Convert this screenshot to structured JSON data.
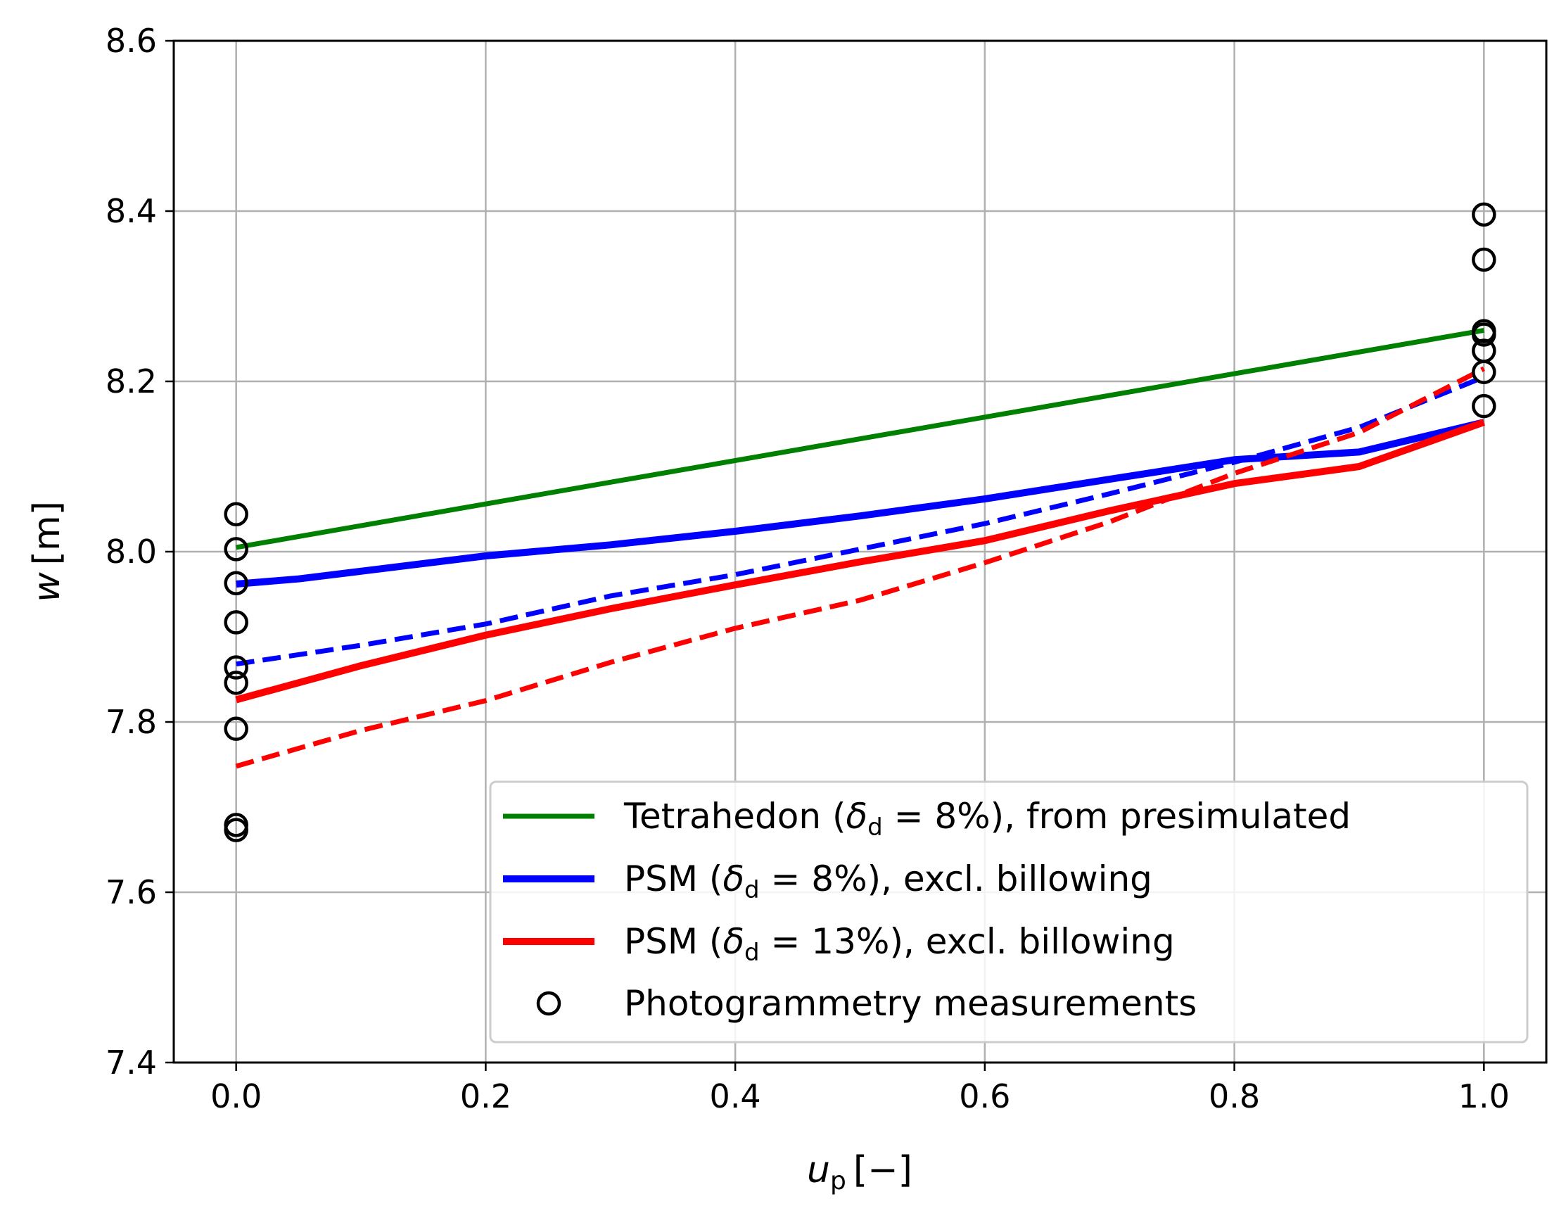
{
  "chart_data": {
    "type": "line",
    "title": "",
    "xlabel_var": "u",
    "xlabel_sub": "p",
    "xlabel_unit": "[−]",
    "ylabel_var": "w",
    "ylabel_unit": "[m]",
    "xlim": [
      -0.05,
      1.05
    ],
    "ylim": [
      7.4,
      8.6
    ],
    "xticks": [
      0.0,
      0.2,
      0.4,
      0.6,
      0.8,
      1.0
    ],
    "xtick_labels": [
      "0.0",
      "0.2",
      "0.4",
      "0.6",
      "0.8",
      "1.0"
    ],
    "yticks": [
      7.4,
      7.6,
      7.8,
      8.0,
      8.2,
      8.4,
      8.6
    ],
    "ytick_labels": [
      "7.4",
      "7.6",
      "7.8",
      "8.0",
      "8.2",
      "8.4",
      "8.6"
    ],
    "grid": true,
    "legend_position": "lower-right",
    "series": [
      {
        "name": "Tetrahedon",
        "legend_pre": "Tetrahedon (",
        "legend_delta": "δ",
        "legend_sub": "d",
        "legend_post": " = 8%), from presimulated",
        "color": "#008000",
        "style": "solid",
        "x": [
          0.0,
          1.0
        ],
        "y": [
          8.005,
          8.26
        ]
      },
      {
        "name": "PSM 8% solid",
        "legend_pre": "PSM (",
        "legend_delta": "δ",
        "legend_sub": "d",
        "legend_post": " = 8%), excl. billowing",
        "color": "#0000ff",
        "style": "solid",
        "x": [
          0.0,
          0.05,
          0.1,
          0.2,
          0.3,
          0.4,
          0.5,
          0.6,
          0.7,
          0.8,
          0.9,
          1.0
        ],
        "y": [
          7.962,
          7.968,
          7.977,
          7.995,
          8.008,
          8.024,
          8.042,
          8.062,
          8.085,
          8.108,
          8.117,
          8.152
        ]
      },
      {
        "name": "PSM 8% dashed",
        "color": "#0000ff",
        "style": "dashed",
        "x": [
          0.0,
          0.1,
          0.2,
          0.3,
          0.4,
          0.5,
          0.6,
          0.7,
          0.8,
          0.9,
          1.0
        ],
        "y": [
          7.868,
          7.89,
          7.915,
          7.948,
          7.973,
          8.003,
          8.033,
          8.068,
          8.105,
          8.146,
          8.205
        ]
      },
      {
        "name": "PSM 13% solid",
        "legend_pre": "PSM (",
        "legend_delta": "δ",
        "legend_sub": "d",
        "legend_post": " = 13%), excl. billowing",
        "color": "#ff0000",
        "style": "solid",
        "x": [
          0.0,
          0.1,
          0.2,
          0.3,
          0.4,
          0.5,
          0.6,
          0.7,
          0.8,
          0.9,
          1.0
        ],
        "y": [
          7.826,
          7.866,
          7.902,
          7.933,
          7.961,
          7.988,
          8.013,
          8.048,
          8.08,
          8.1,
          8.152
        ]
      },
      {
        "name": "PSM 13% dashed",
        "color": "#ff0000",
        "style": "dashed",
        "x": [
          0.0,
          0.1,
          0.2,
          0.3,
          0.4,
          0.5,
          0.6,
          0.7,
          0.8,
          0.9,
          1.0
        ],
        "y": [
          7.748,
          7.79,
          7.825,
          7.87,
          7.91,
          7.943,
          7.987,
          8.035,
          8.092,
          8.14,
          8.215
        ]
      },
      {
        "name": "Photogrammetry measurements",
        "legend_text": "Photogrammetry measurements",
        "color": "#000000",
        "style": "markers",
        "x": [
          0.0,
          0.0,
          0.0,
          0.0,
          0.0,
          0.0,
          0.0,
          0.0,
          0.0,
          1.0,
          1.0,
          1.0,
          1.0,
          1.0,
          1.0,
          1.0
        ],
        "y": [
          8.044,
          8.003,
          7.963,
          7.917,
          7.864,
          7.846,
          7.792,
          7.679,
          7.673,
          8.396,
          8.343,
          8.259,
          8.255,
          8.236,
          8.211,
          8.171
        ]
      }
    ]
  }
}
